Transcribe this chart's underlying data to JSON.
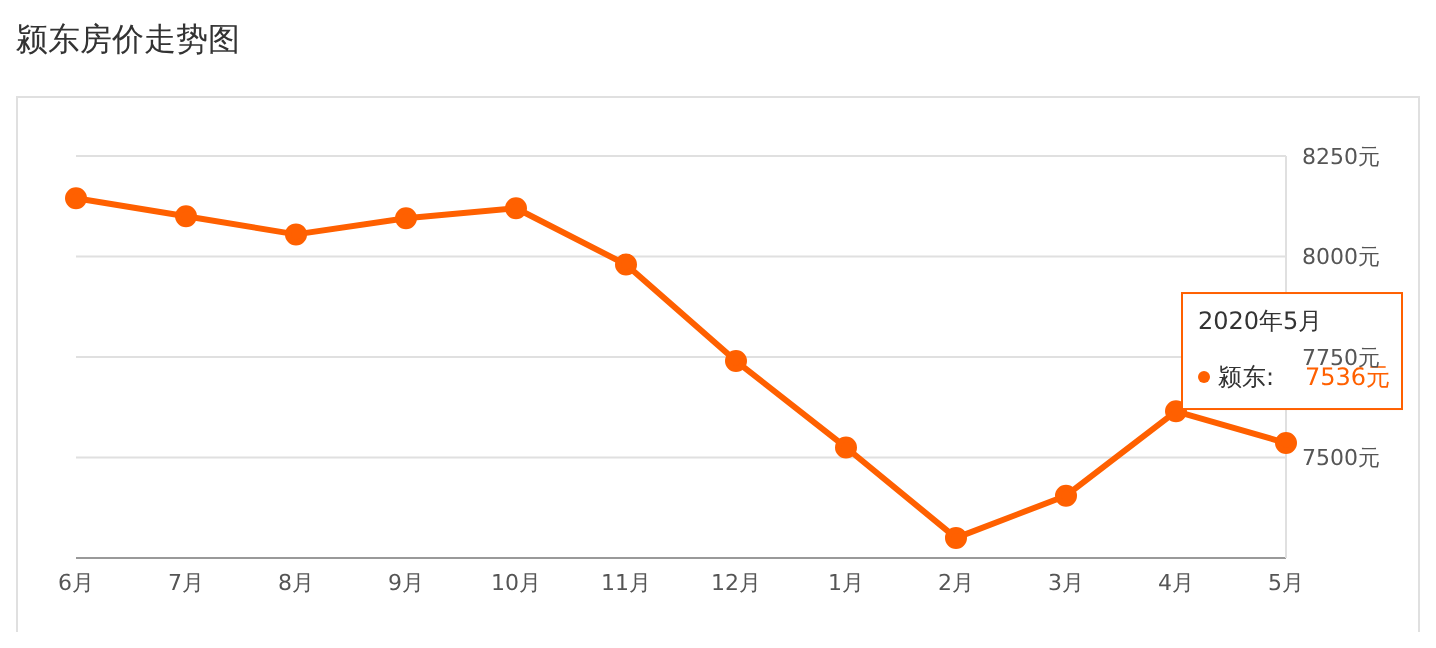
{
  "chart_data": {
    "type": "line",
    "title": "颍东房价走势图",
    "categories": [
      "6月",
      "7月",
      "8月",
      "9月",
      "10月",
      "11月",
      "12月",
      "1月",
      "2月",
      "3月",
      "4月",
      "5月"
    ],
    "series": [
      {
        "name": "颍东:",
        "color": "#ff6000",
        "values": [
          8145,
          8100,
          8055,
          8095,
          8120,
          7980,
          7740,
          7525,
          7300,
          7405,
          7615,
          7536
        ],
        "value_labels": [
          null,
          null,
          null,
          null,
          null,
          null,
          null,
          null,
          null,
          null,
          null,
          "7536元"
        ]
      }
    ],
    "ylim": [
      7250,
      8250
    ],
    "yticks": [
      {
        "value": 7500,
        "label": "7500元"
      },
      {
        "value": 7750,
        "label": "7750元"
      },
      {
        "value": 8000,
        "label": "8000元"
      },
      {
        "value": 8250,
        "label": "8250元"
      }
    ],
    "grid": "y",
    "marker": "circle",
    "line_style": "solid",
    "legend": "right",
    "annotations": [
      "2020年5月"
    ]
  }
}
